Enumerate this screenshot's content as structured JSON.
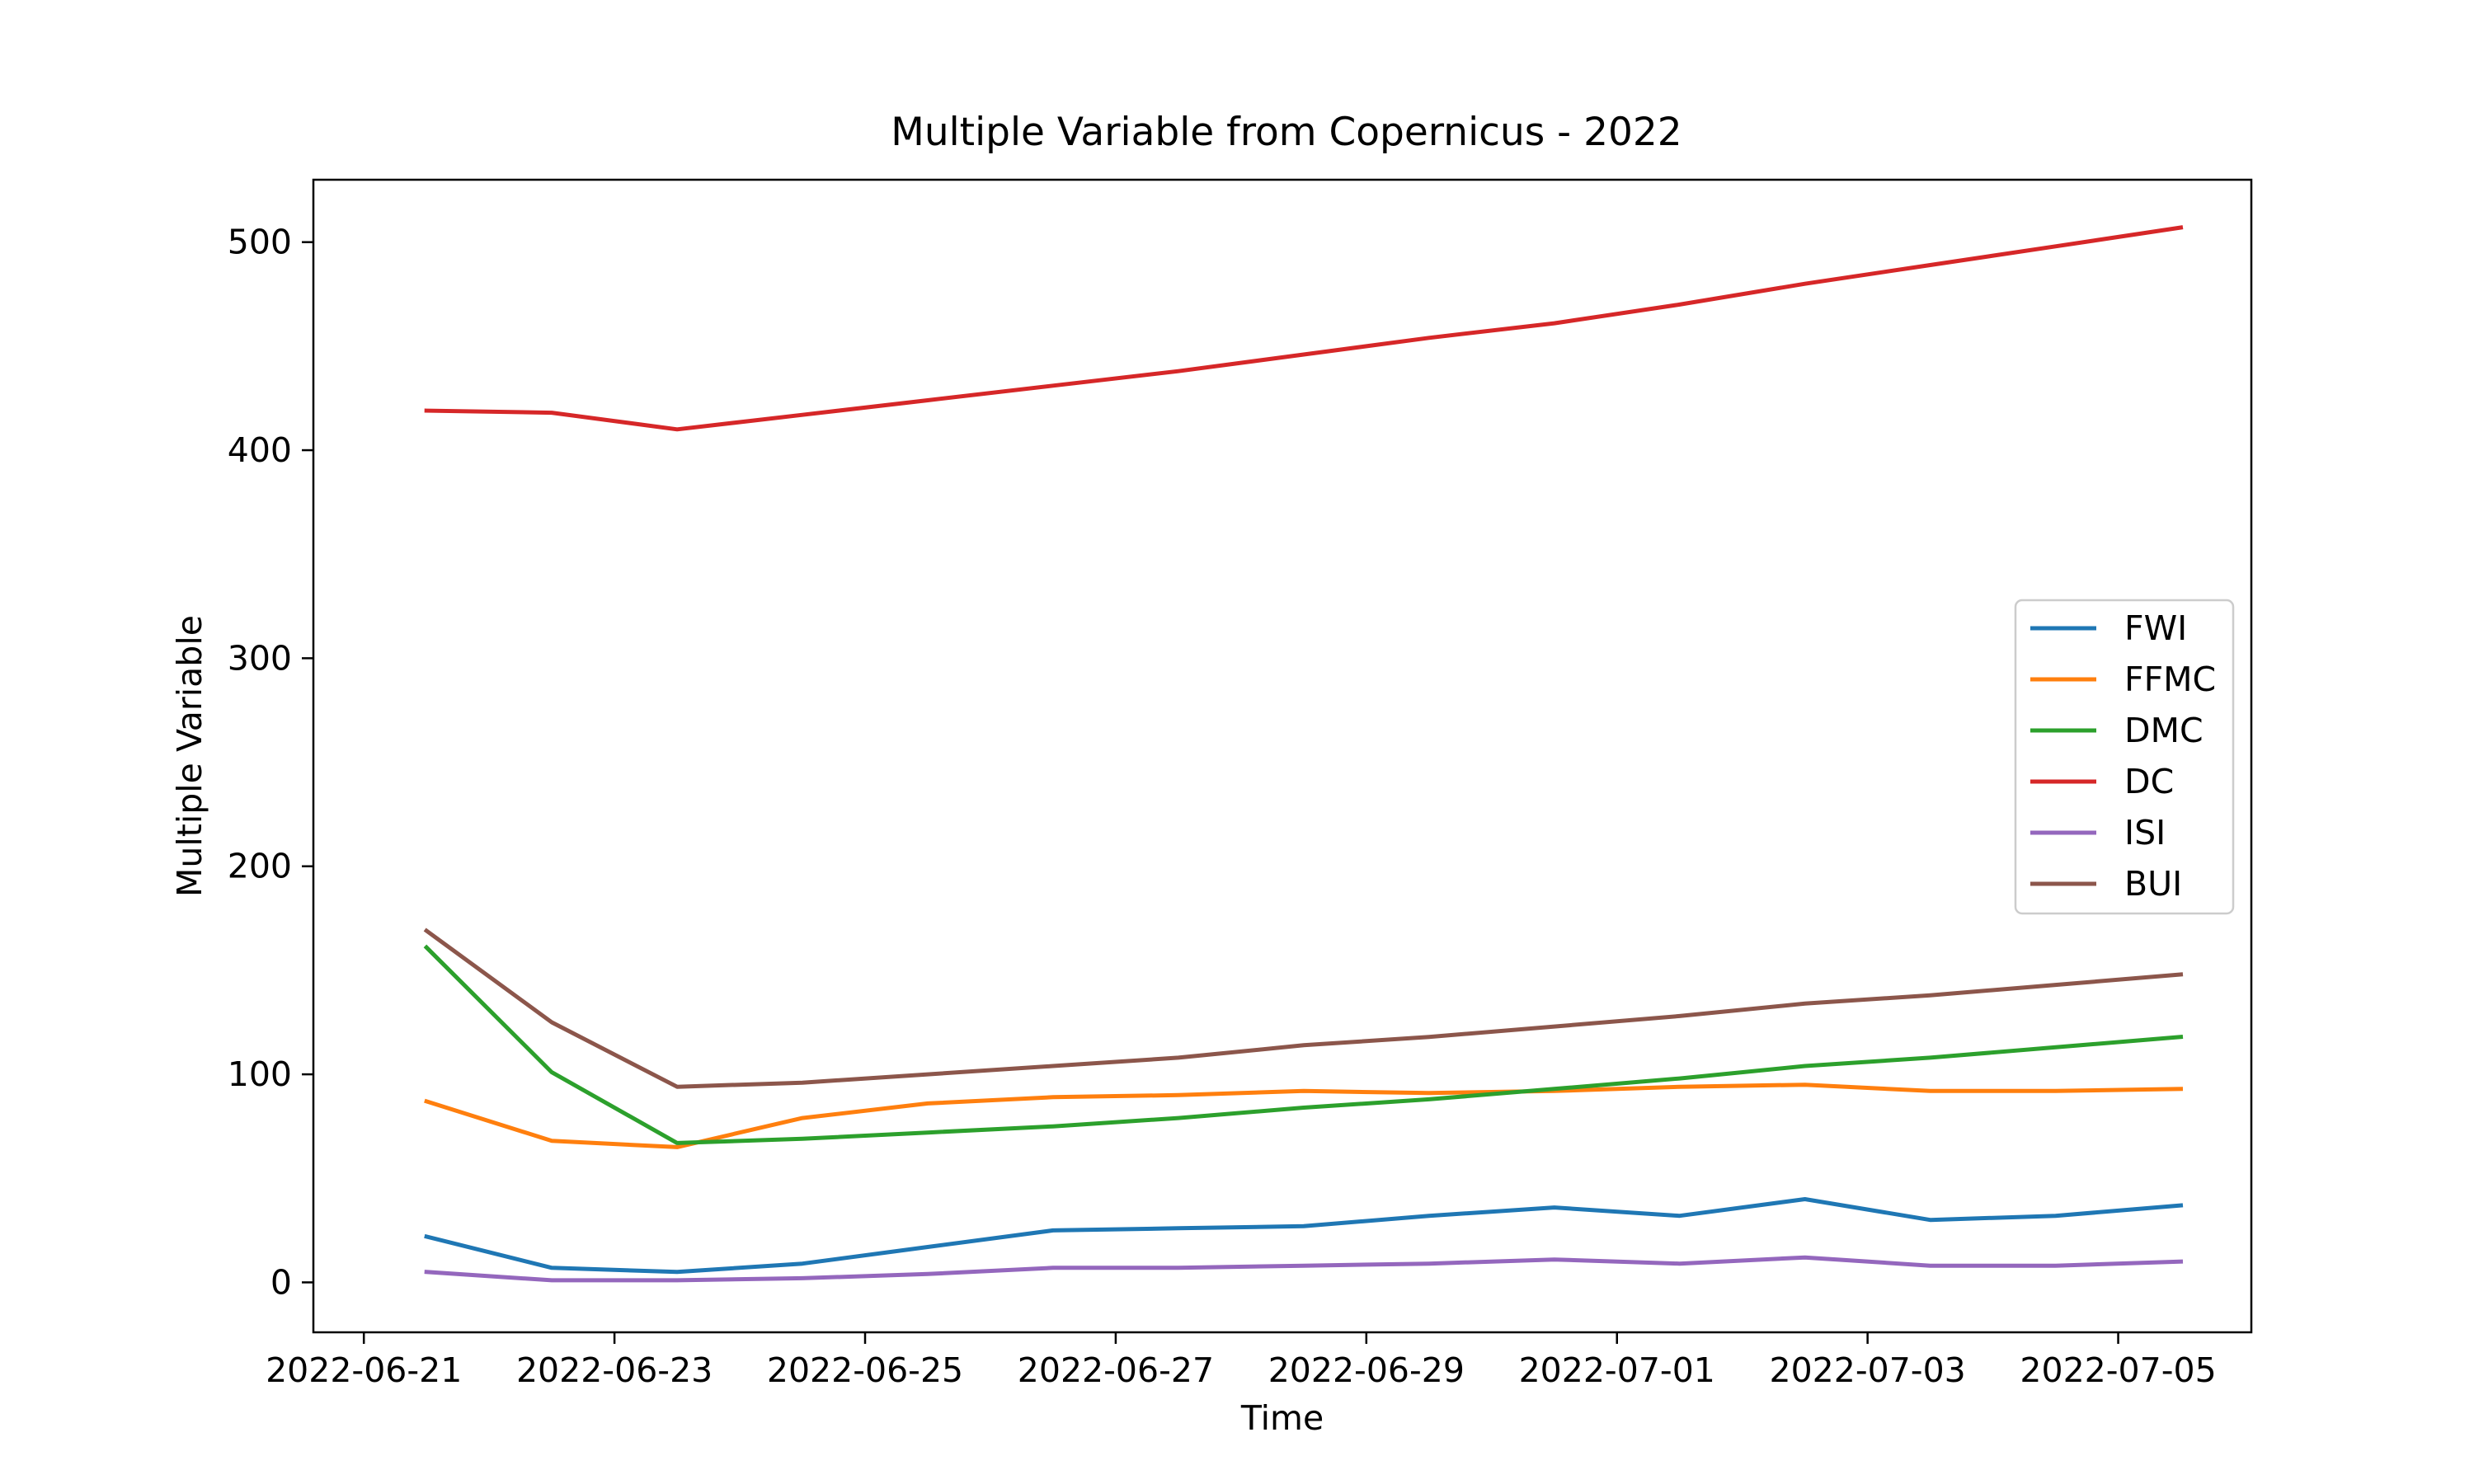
{
  "chart_data": {
    "type": "line",
    "title": "Multiple Variable from Copernicus - 2022",
    "xlabel": "Time",
    "ylabel": "Multiple Variable",
    "x_type": "date",
    "xlim": [
      "2022-06-20T14:20:00",
      "2022-07-06T01:30:00"
    ],
    "ylim": [
      -24,
      530
    ],
    "x_ticks": [
      "2022-06-21",
      "2022-06-23",
      "2022-06-25",
      "2022-06-27",
      "2022-06-29",
      "2022-07-01",
      "2022-07-03",
      "2022-07-05"
    ],
    "y_ticks": [
      0,
      100,
      200,
      300,
      400,
      500
    ],
    "grid": false,
    "legend_position": "center-right",
    "x": [
      "2022-06-21T12:00",
      "2022-06-22T12:00",
      "2022-06-23T12:00",
      "2022-06-24T12:00",
      "2022-06-25T12:00",
      "2022-06-26T12:00",
      "2022-06-27T12:00",
      "2022-06-28T12:00",
      "2022-06-29T12:00",
      "2022-06-30T12:00",
      "2022-07-01T12:00",
      "2022-07-02T12:00",
      "2022-07-03T12:00",
      "2022-07-04T12:00",
      "2022-07-05T12:00"
    ],
    "series": [
      {
        "name": "FWI",
        "color": "#1f77b4",
        "values": [
          22,
          7,
          5,
          9,
          17,
          25,
          26,
          27,
          32,
          36,
          32,
          40,
          30,
          32,
          37
        ]
      },
      {
        "name": "FFMC",
        "color": "#ff7f0e",
        "values": [
          87,
          68,
          65,
          79,
          86,
          89,
          90,
          92,
          91,
          92,
          94,
          95,
          92,
          92,
          93
        ]
      },
      {
        "name": "DMC",
        "color": "#2ca02c",
        "values": [
          161,
          101,
          67,
          69,
          72,
          75,
          79,
          84,
          88,
          93,
          98,
          104,
          108,
          113,
          118
        ]
      },
      {
        "name": "DC",
        "color": "#d62728",
        "values": [
          419,
          418,
          410,
          417,
          424,
          431,
          438,
          446,
          454,
          461,
          470,
          480,
          489,
          498,
          507
        ]
      },
      {
        "name": "ISI",
        "color": "#9467bd",
        "values": [
          5,
          1,
          1,
          2,
          4,
          7,
          7,
          8,
          9,
          11,
          9,
          12,
          8,
          8,
          10
        ]
      },
      {
        "name": "BUI",
        "color": "#8c564b",
        "values": [
          169,
          125,
          94,
          96,
          100,
          104,
          108,
          114,
          118,
          123,
          128,
          134,
          138,
          143,
          148
        ]
      }
    ]
  }
}
